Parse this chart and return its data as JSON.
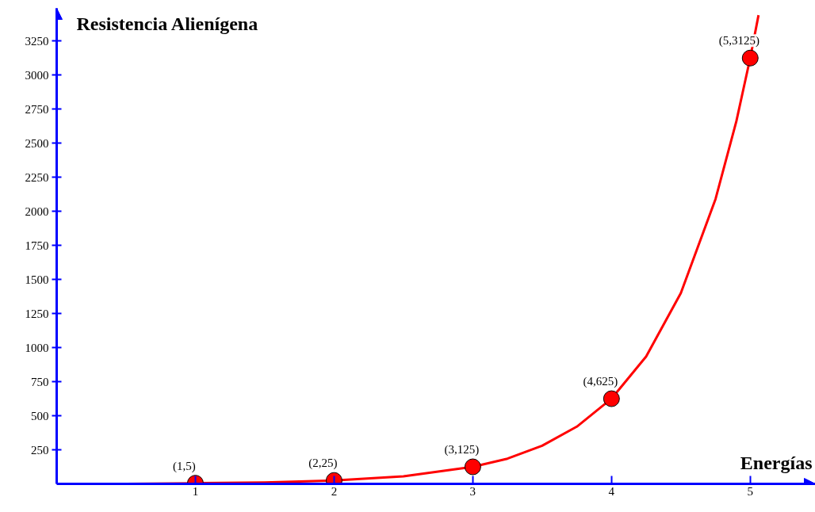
{
  "chart_data": {
    "type": "scatter",
    "ylabel": "Resistencia Alienígena",
    "xlabel": "Energías",
    "xlim": [
      0,
      5.47
    ],
    "ylim": [
      0,
      3490
    ],
    "xticks": [
      1,
      2,
      3,
      4,
      5
    ],
    "yticks": [
      250,
      500,
      750,
      1000,
      1250,
      1500,
      1750,
      2000,
      2250,
      2500,
      2750,
      3000,
      3250
    ],
    "grid": false,
    "series": [
      {
        "type": "line",
        "color": "#ff0000",
        "line_style": "solid",
        "x": [
          0,
          0.5,
          1,
          1.5,
          2,
          2.5,
          3,
          3.25,
          3.5,
          3.75,
          4,
          4.25,
          4.5,
          4.75,
          4.9,
          5,
          5.06
        ],
        "values": [
          0,
          0,
          5,
          10,
          25,
          55,
          125,
          185,
          280,
          420,
          625,
          935,
          1400,
          2090,
          2660,
          3125,
          3440
        ]
      },
      {
        "color": "#ff0000",
        "marker": "circle",
        "x": [
          1,
          2,
          3,
          4,
          5
        ],
        "values": [
          5,
          25,
          125,
          625,
          3125
        ]
      }
    ],
    "annotations": [
      {
        "text": "(1,5)",
        "x": 1,
        "y": 5
      },
      {
        "text": "(2,25)",
        "x": 2,
        "y": 25
      },
      {
        "text": "(3,125)",
        "x": 3,
        "y": 125
      },
      {
        "text": "(4,625)",
        "x": 4,
        "y": 625
      },
      {
        "text": "(5,3125)",
        "x": 5,
        "y": 3125
      }
    ]
  }
}
